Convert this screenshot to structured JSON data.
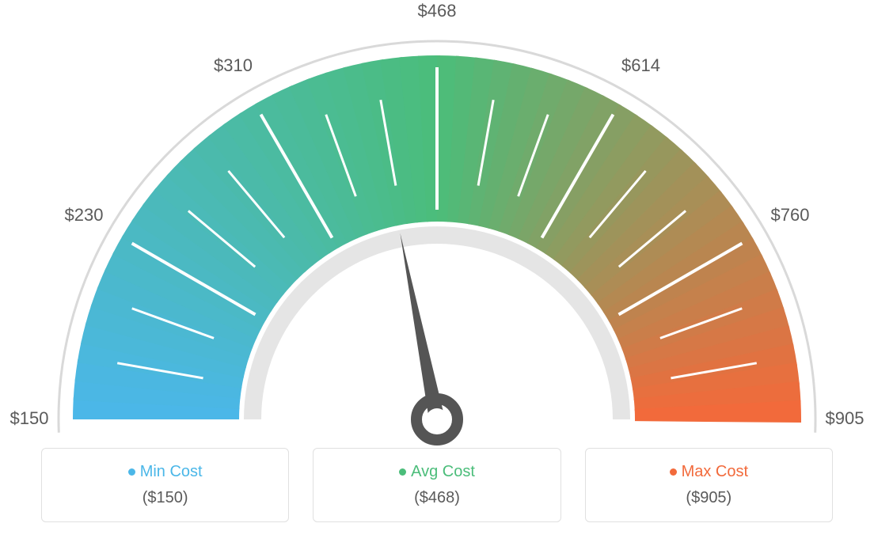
{
  "gauge": {
    "type": "gauge",
    "min": 150,
    "avg": 468,
    "max": 905,
    "scale_labels": [
      "$150",
      "$230",
      "$310",
      "$468",
      "$614",
      "$760",
      "$905"
    ],
    "scale_angles_deg": [
      -90,
      -60,
      -30,
      0,
      30,
      60,
      90
    ],
    "colors": {
      "start": "#4bb7e8",
      "mid": "#4bbd7a",
      "end": "#f26a3b",
      "tick": "#ffffff",
      "outer_ring": "#d9d9d9",
      "inner_ring": "#e5e5e5",
      "needle": "#555555",
      "label_text": "#5a5a5a"
    },
    "outer_radius": 460,
    "inner_radius": 250,
    "ring_stroke_width": 4,
    "tick_stroke_width": 3,
    "needle_length": 240,
    "label_fontsize": 22,
    "background_color": "#ffffff"
  },
  "legend": {
    "min": {
      "label": "Min Cost",
      "value": "($150)",
      "color": "#4bb7e8"
    },
    "avg": {
      "label": "Avg Cost",
      "value": "($468)",
      "color": "#4bbd7a"
    },
    "max": {
      "label": "Max Cost",
      "value": "($905)",
      "color": "#f26a3b"
    },
    "box_border_color": "#e0e0e0",
    "box_border_radius": 6,
    "title_fontsize": 20,
    "value_fontsize": 20,
    "value_color": "#5a5a5a"
  }
}
